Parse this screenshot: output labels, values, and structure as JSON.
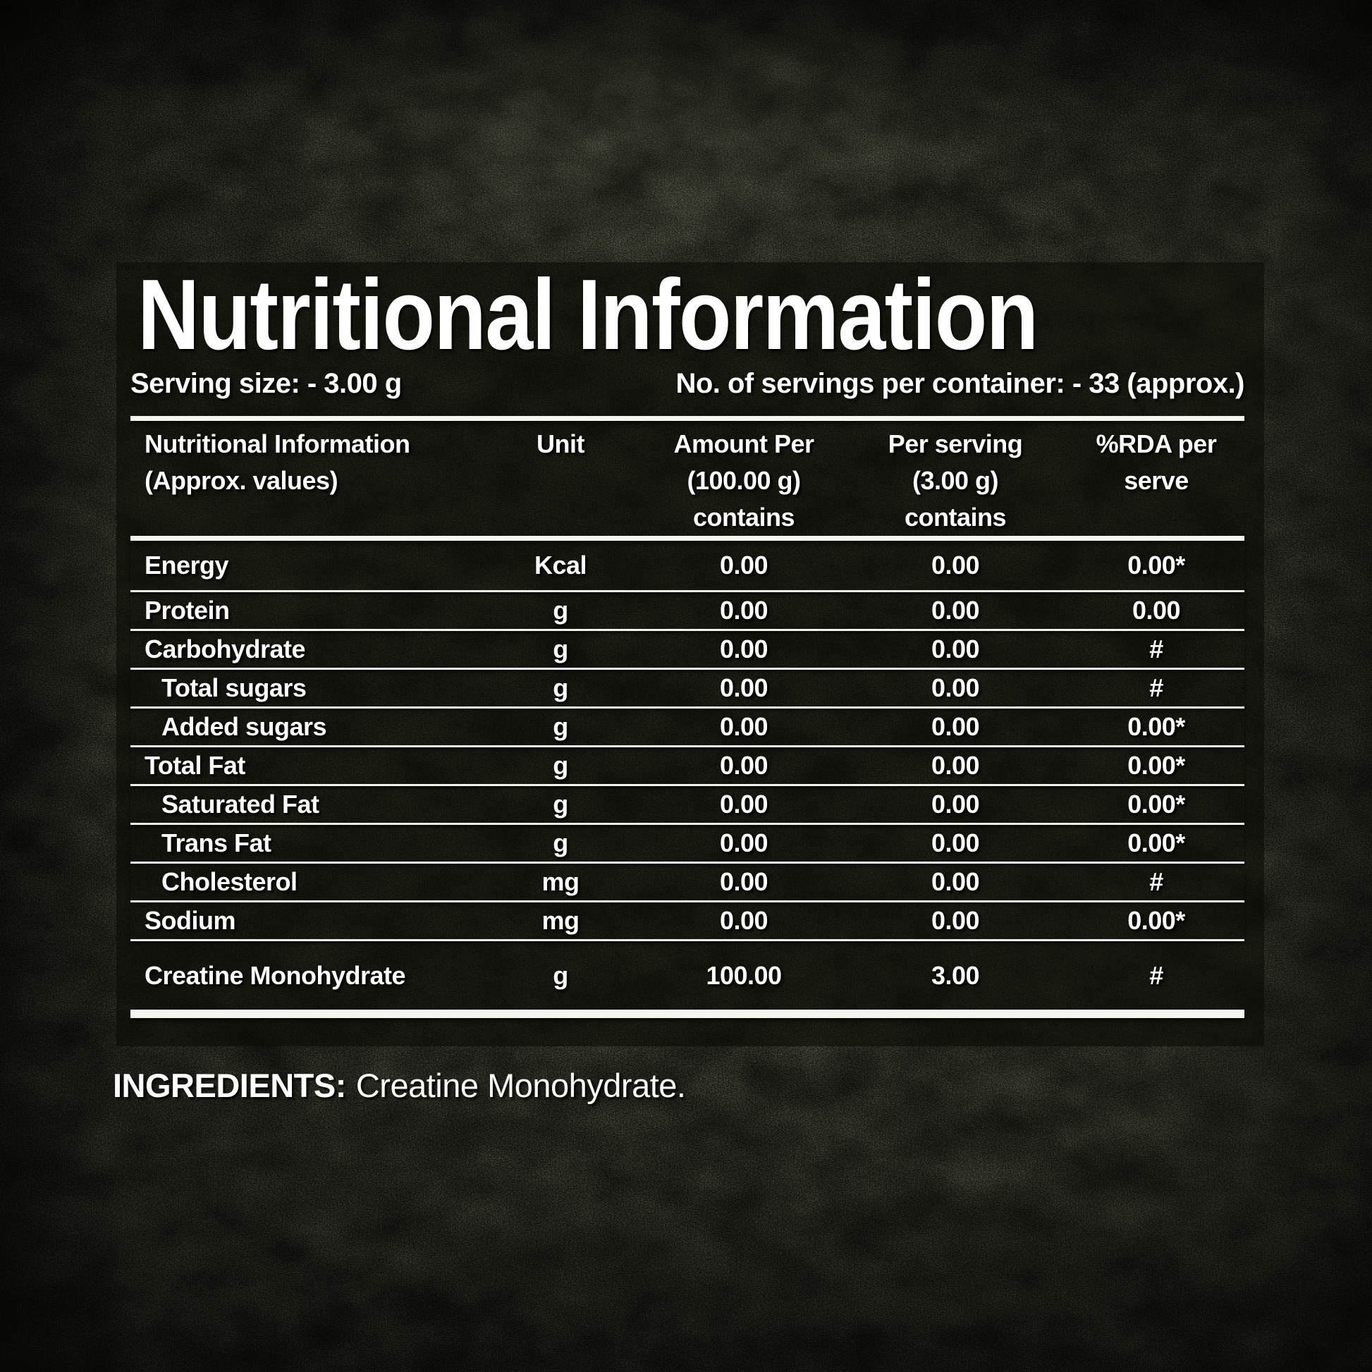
{
  "colors": {
    "text": "#ffffff",
    "rule": "#f5f5f0",
    "panel_bg": "rgba(12,12,6,0.64)",
    "background_base": "#1a1b12"
  },
  "title": "Nutritional Information",
  "serving_size": "Serving size: - 3.00 g",
  "servings_per_container": "No. of servings per container: - 33 (approx.)",
  "table": {
    "headers": [
      {
        "id": "name",
        "text": "Nutritional Information\n(Approx. values)"
      },
      {
        "id": "unit",
        "text": "Unit"
      },
      {
        "id": "per100",
        "text": "Amount Per\n(100.00 g)\ncontains"
      },
      {
        "id": "serving",
        "text": "Per serving\n(3.00 g)\ncontains"
      },
      {
        "id": "rda",
        "text": "%RDA per\nserve"
      }
    ],
    "rows": [
      {
        "name": "Energy",
        "indent": false,
        "unit": "Kcal",
        "per100": "0.00",
        "serving": "0.00",
        "rda": "0.00*"
      },
      {
        "name": "Protein",
        "indent": false,
        "unit": "g",
        "per100": "0.00",
        "serving": "0.00",
        "rda": "0.00"
      },
      {
        "name": "Carbohydrate",
        "indent": false,
        "unit": "g",
        "per100": "0.00",
        "serving": "0.00",
        "rda": "#"
      },
      {
        "name": "Total sugars",
        "indent": true,
        "unit": "g",
        "per100": "0.00",
        "serving": "0.00",
        "rda": "#"
      },
      {
        "name": "Added sugars",
        "indent": true,
        "unit": "g",
        "per100": "0.00",
        "serving": "0.00",
        "rda": "0.00*"
      },
      {
        "name": "Total Fat",
        "indent": false,
        "unit": "g",
        "per100": "0.00",
        "serving": "0.00",
        "rda": "0.00*"
      },
      {
        "name": "Saturated Fat",
        "indent": true,
        "unit": "g",
        "per100": "0.00",
        "serving": "0.00",
        "rda": "0.00*"
      },
      {
        "name": "Trans Fat",
        "indent": true,
        "unit": "g",
        "per100": "0.00",
        "serving": "0.00",
        "rda": "0.00*"
      },
      {
        "name": "Cholesterol",
        "indent": true,
        "unit": "mg",
        "per100": "0.00",
        "serving": "0.00",
        "rda": "#"
      },
      {
        "name": "Sodium",
        "indent": false,
        "unit": "mg",
        "per100": "0.00",
        "serving": "0.00",
        "rda": "0.00*"
      },
      {
        "name": "Creatine Monohydrate",
        "indent": false,
        "unit": "g",
        "per100": "100.00",
        "serving": "3.00",
        "rda": "#"
      }
    ]
  },
  "ingredients": {
    "label": "INGREDIENTS:",
    "value": "Creatine Monohydrate."
  }
}
